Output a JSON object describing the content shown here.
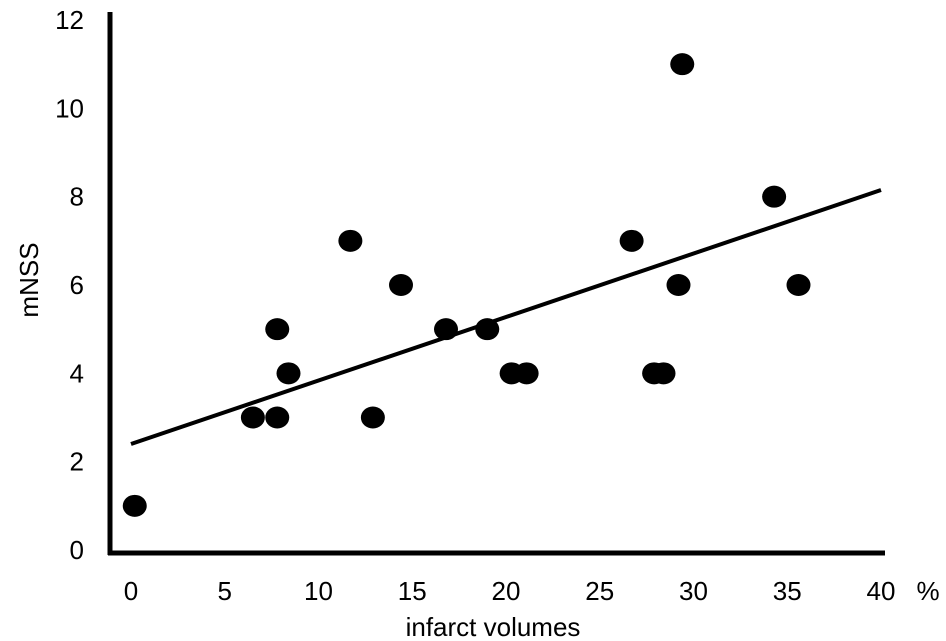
{
  "chart_data": {
    "type": "scatter",
    "title": "",
    "xlabel": "infarct volumes",
    "x_unit_label": "%",
    "ylabel": "mNSS",
    "xlim": [
      0,
      40
    ],
    "ylim": [
      0,
      12
    ],
    "x_ticks": [
      0,
      5,
      10,
      15,
      20,
      25,
      30,
      35,
      40
    ],
    "y_ticks": [
      0,
      2,
      4,
      6,
      8,
      10,
      12
    ],
    "grid": false,
    "legend": "none",
    "marker_color": "#000000",
    "series": [
      {
        "points": [
          {
            "x": 0.2,
            "y": 1
          },
          {
            "x": 6.5,
            "y": 3
          },
          {
            "x": 7.8,
            "y": 3
          },
          {
            "x": 7.8,
            "y": 5
          },
          {
            "x": 8.4,
            "y": 4
          },
          {
            "x": 11.7,
            "y": 7
          },
          {
            "x": 12.9,
            "y": 3
          },
          {
            "x": 14.4,
            "y": 6
          },
          {
            "x": 16.8,
            "y": 5
          },
          {
            "x": 19.0,
            "y": 5
          },
          {
            "x": 20.3,
            "y": 4
          },
          {
            "x": 21.1,
            "y": 4
          },
          {
            "x": 26.7,
            "y": 7
          },
          {
            "x": 27.9,
            "y": 4
          },
          {
            "x": 28.4,
            "y": 4
          },
          {
            "x": 29.2,
            "y": 6
          },
          {
            "x": 29.4,
            "y": 11
          },
          {
            "x": 34.3,
            "y": 8
          },
          {
            "x": 35.6,
            "y": 6
          }
        ]
      }
    ],
    "trendline": {
      "x": [
        0,
        40
      ],
      "y": [
        2.4,
        8.15
      ]
    }
  }
}
